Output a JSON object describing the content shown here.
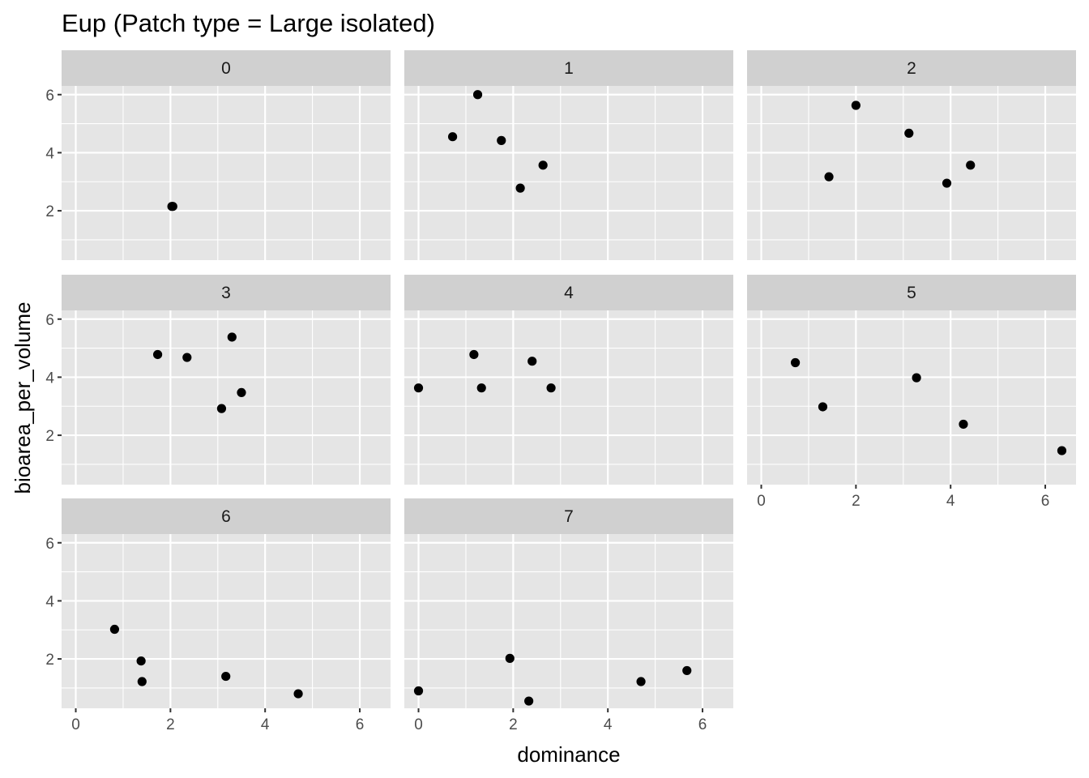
{
  "chart_data": {
    "type": "scatter",
    "title": "Eup (Patch type = Large isolated)",
    "xlabel": "dominance",
    "ylabel": "bioarea_per_volume",
    "xlim": [
      -0.3,
      6.65
    ],
    "ylim": [
      0.3,
      6.3
    ],
    "x_ticks": [
      0,
      2,
      4,
      6
    ],
    "y_ticks": [
      2,
      4,
      6
    ],
    "grid": true,
    "legend": "none",
    "colors": {
      "panel_background": "#e5e5e5",
      "strip_background": "#d0d0d0",
      "grid_major": "#ffffff",
      "point": "#000000"
    },
    "facets": [
      {
        "label": "0",
        "points": [
          [
            2.03,
            2.15
          ],
          [
            2.05,
            2.15
          ]
        ]
      },
      {
        "label": "1",
        "points": [
          [
            0.72,
            4.55
          ],
          [
            1.25,
            6.0
          ],
          [
            1.75,
            4.42
          ],
          [
            2.15,
            2.78
          ],
          [
            2.63,
            3.57
          ]
        ]
      },
      {
        "label": "2",
        "points": [
          [
            1.43,
            3.17
          ],
          [
            2.0,
            5.63
          ],
          [
            3.12,
            4.67
          ],
          [
            3.92,
            2.95
          ],
          [
            4.42,
            3.57
          ]
        ]
      },
      {
        "label": "3",
        "points": [
          [
            1.73,
            4.78
          ],
          [
            2.35,
            4.68
          ],
          [
            3.08,
            2.92
          ],
          [
            3.3,
            5.38
          ],
          [
            3.5,
            3.47
          ]
        ]
      },
      {
        "label": "4",
        "points": [
          [
            0.0,
            3.63
          ],
          [
            1.17,
            4.78
          ],
          [
            1.33,
            3.63
          ],
          [
            2.4,
            4.55
          ],
          [
            2.8,
            3.63
          ]
        ]
      },
      {
        "label": "5",
        "points": [
          [
            0.72,
            4.5
          ],
          [
            1.3,
            2.98
          ],
          [
            3.28,
            3.98
          ],
          [
            4.27,
            2.38
          ],
          [
            6.35,
            1.47
          ]
        ]
      },
      {
        "label": "6",
        "points": [
          [
            0.82,
            3.02
          ],
          [
            1.38,
            1.93
          ],
          [
            1.4,
            1.22
          ],
          [
            3.17,
            1.4
          ],
          [
            4.7,
            0.8
          ]
        ]
      },
      {
        "label": "7",
        "points": [
          [
            0.0,
            0.9
          ],
          [
            1.93,
            2.02
          ],
          [
            2.33,
            0.55
          ],
          [
            4.7,
            1.22
          ],
          [
            5.67,
            1.6
          ]
        ]
      }
    ]
  }
}
